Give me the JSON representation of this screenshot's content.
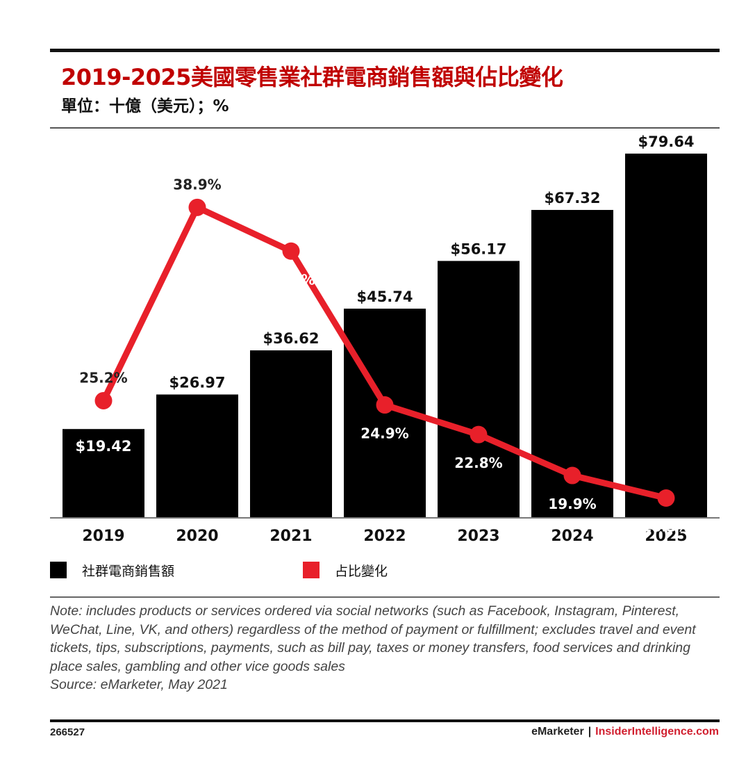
{
  "title": "2019-2025美國零售業社群電商銷售額與佔比變化",
  "subtitle": "單位：十億（美元）；%",
  "chart_data": {
    "type": "bar",
    "categories": [
      "2019",
      "2020",
      "2021",
      "2022",
      "2023",
      "2024",
      "2025"
    ],
    "series": [
      {
        "name": "社群電商銷售額",
        "type": "bar",
        "color": "#000000",
        "values": [
          19.42,
          26.97,
          36.62,
          45.74,
          56.17,
          67.32,
          79.64
        ],
        "labels": [
          "$19.42",
          "$26.97",
          "$36.62",
          "$45.74",
          "$56.17",
          "$67.32",
          "$79.64"
        ]
      },
      {
        "name": "占比變化",
        "type": "line",
        "color": "#e8202a",
        "values": [
          25.2,
          38.9,
          35.8,
          24.9,
          22.8,
          19.9,
          18.3
        ],
        "labels": [
          "25.2%",
          "38.9%",
          "35.8%",
          "24.9%",
          "22.8%",
          "19.9%",
          "18.3%"
        ]
      }
    ],
    "legend_position": "bottom-left",
    "grid": false
  },
  "legend": {
    "bar_label": "社群電商銷售額",
    "line_label": "占比變化"
  },
  "note": {
    "text": "Note: includes products or services ordered via social networks (such as Facebook, Instagram, Pinterest, WeChat, Line, VK, and others) regardless of the method of payment or fulfillment; excludes travel and event tickets, tips, subscriptions, payments, such as bill pay, taxes or money transfers, food services and drinking place sales, gambling and other vice goods sales",
    "source": "Source: eMarketer, May 2021"
  },
  "footer": {
    "chart_id": "266527",
    "brand_left": "eMarketer",
    "separator": "|",
    "brand_right": "InsiderIntelligence.com"
  }
}
